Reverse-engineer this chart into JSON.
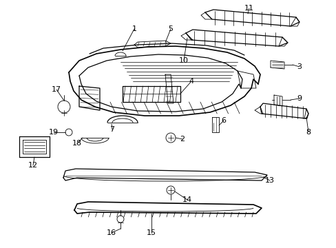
{
  "background_color": "#ffffff",
  "line_color": "#000000",
  "fig_width": 4.89,
  "fig_height": 3.6,
  "dpi": 100,
  "label_fontsize": 7.5,
  "lw_thin": 0.6,
  "lw_med": 0.9,
  "lw_thick": 1.2
}
